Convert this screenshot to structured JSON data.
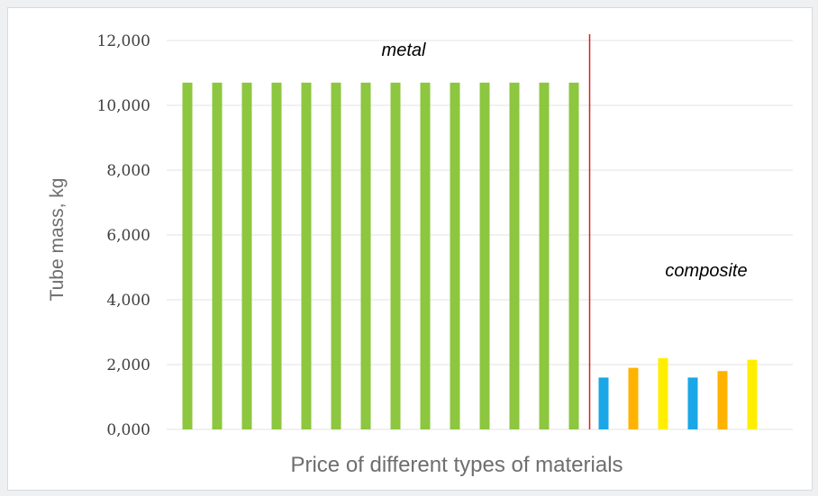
{
  "chart_data": {
    "type": "bar",
    "title": "",
    "xlabel": "Price of different types of materials",
    "ylabel": "Tube mass, kg",
    "ylim": [
      0,
      12000
    ],
    "yticks": [
      "0,000",
      "2,000",
      "4,000",
      "6,000",
      "8,000",
      "10,000",
      "12,000"
    ],
    "grid": true,
    "legend": "none",
    "values": [
      10700,
      10700,
      10700,
      10700,
      10700,
      10700,
      10700,
      10700,
      10700,
      10700,
      10700,
      10700,
      10700,
      10700,
      1600,
      1900,
      2200,
      1600,
      1800,
      2150
    ],
    "bar_colors": [
      "#8dc63f",
      "#8dc63f",
      "#8dc63f",
      "#8dc63f",
      "#8dc63f",
      "#8dc63f",
      "#8dc63f",
      "#8dc63f",
      "#8dc63f",
      "#8dc63f",
      "#8dc63f",
      "#8dc63f",
      "#8dc63f",
      "#8dc63f",
      "#1aa7e8",
      "#ffb300",
      "#ffee00",
      "#1aa7e8",
      "#ffb300",
      "#ffee00"
    ],
    "annotations": [
      "metal",
      "composite"
    ],
    "divider_color": "#d62020"
  }
}
